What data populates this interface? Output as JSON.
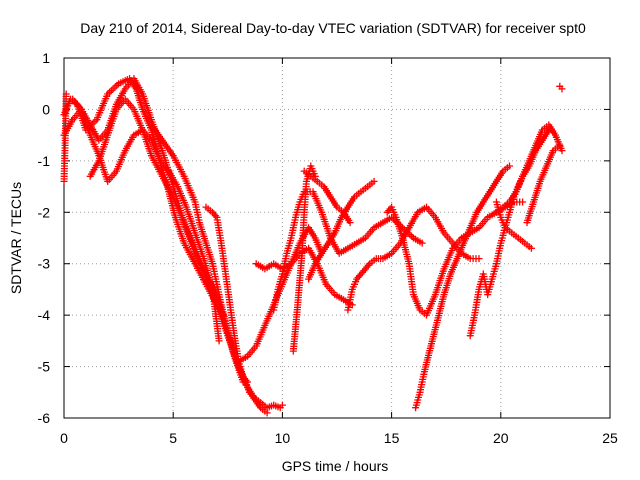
{
  "chart_data": {
    "type": "scatter",
    "title": "Day 210 of 2014, Sidereal Day-to-day VTEC variation (SDTVAR) for receiver spt0",
    "xlabel": "GPS time / hours",
    "ylabel": "SDTVAR / TECUs",
    "xlim": [
      0,
      25
    ],
    "ylim": [
      -6,
      1
    ],
    "xticks": [
      0,
      5,
      10,
      15,
      20,
      25
    ],
    "yticks": [
      -6,
      -5,
      -4,
      -3,
      -2,
      -1,
      0,
      1
    ],
    "xtick_labels": [
      "0",
      "5",
      "10",
      "15",
      "20",
      "25"
    ],
    "ytick_labels": [
      "-6",
      "-5",
      "-4",
      "-3",
      "-2",
      "-1",
      "0",
      "1"
    ],
    "grid": true,
    "marker": "+",
    "color": "#ff0000",
    "series": [
      {
        "name": "s1",
        "x": [
          0.0,
          0.3,
          0.6,
          1.0,
          1.5,
          2.0,
          2.5,
          3.0,
          3.3,
          3.6,
          4.0,
          4.4,
          4.8,
          5.1,
          5.5,
          6.0,
          6.5,
          7.0,
          7.3
        ],
        "y": [
          -0.1,
          0.2,
          0.1,
          -0.4,
          -0.2,
          0.3,
          0.5,
          0.6,
          0.4,
          0.0,
          -0.4,
          -1.0,
          -1.6,
          -2.1,
          -2.6,
          -3.0,
          -3.4,
          -3.8,
          -4.0
        ]
      },
      {
        "name": "s2",
        "x": [
          0.0,
          0.4,
          0.8,
          1.2,
          1.6,
          2.0,
          2.4,
          2.8,
          3.2,
          3.6,
          4.0,
          4.5,
          5.0,
          5.5,
          6.0,
          6.5,
          7.0,
          7.5,
          8.0,
          8.5,
          9.0,
          9.3
        ],
        "y": [
          -0.5,
          -0.2,
          0.0,
          -0.3,
          -0.6,
          -0.4,
          0.1,
          0.4,
          0.6,
          0.3,
          -0.2,
          -0.8,
          -1.5,
          -2.2,
          -2.8,
          -3.3,
          -3.8,
          -4.4,
          -5.0,
          -5.5,
          -5.8,
          -5.9
        ]
      },
      {
        "name": "s3",
        "x": [
          1.2,
          1.6,
          2.0,
          2.4,
          2.8,
          3.2,
          3.6,
          4.0,
          4.5,
          5.0,
          5.4,
          5.8,
          6.2,
          6.6,
          7.0,
          7.4,
          7.8,
          8.2
        ],
        "y": [
          -1.3,
          -1.0,
          -0.5,
          0.0,
          0.2,
          0.0,
          -0.4,
          -0.9,
          -1.3,
          -1.7,
          -2.1,
          -2.5,
          -2.9,
          -3.3,
          -3.6,
          -4.2,
          -4.8,
          -5.3
        ]
      },
      {
        "name": "s4",
        "x": [
          0.4,
          0.8,
          1.2,
          1.6,
          2.0,
          2.4,
          2.8,
          3.2,
          3.6,
          4.0,
          4.4,
          4.8,
          5.2,
          5.6,
          6.0,
          6.4,
          6.8,
          7.1
        ],
        "y": [
          0.2,
          0.0,
          -0.5,
          -0.9,
          -1.4,
          -1.2,
          -0.8,
          -0.5,
          -0.4,
          -0.6,
          -1.0,
          -1.2,
          -1.5,
          -1.9,
          -2.4,
          -2.9,
          -3.5,
          -4.5
        ]
      },
      {
        "name": "s5",
        "x": [
          4.0,
          4.5,
          5.0,
          5.5,
          6.0,
          6.2,
          6.5,
          6.8,
          7.0,
          7.2,
          7.5,
          7.8,
          8.2
        ],
        "y": [
          -0.3,
          -0.6,
          -0.9,
          -1.3,
          -1.8,
          -2.2,
          -2.6,
          -3.0,
          -3.4,
          -3.8,
          -4.3,
          -4.8,
          -5.2
        ]
      },
      {
        "name": "s6",
        "x": [
          6.5,
          6.8,
          7.0,
          7.2,
          7.4,
          7.6,
          7.8,
          8.0,
          8.2,
          8.4
        ],
        "y": [
          -1.9,
          -2.0,
          -2.1,
          -2.6,
          -3.2,
          -3.8,
          -4.4,
          -4.9,
          -5.2,
          -5.3
        ]
      },
      {
        "name": "s7",
        "x": [
          8.2,
          8.4,
          8.7,
          9.0,
          9.3,
          9.6,
          9.9,
          10.0
        ],
        "y": [
          -5.2,
          -5.4,
          -5.6,
          -5.7,
          -5.8,
          -5.75,
          -5.8,
          -5.75
        ]
      },
      {
        "name": "s8",
        "x": [
          8.0,
          8.4,
          8.8,
          9.2,
          9.6,
          10.0,
          10.4,
          10.8,
          11.2,
          11.6,
          12.0,
          12.4,
          12.8,
          13.2
        ],
        "y": [
          -4.9,
          -4.8,
          -4.6,
          -4.2,
          -3.8,
          -3.4,
          -3.0,
          -2.8,
          -2.7,
          -3.0,
          -3.4,
          -3.6,
          -3.7,
          -3.8
        ]
      },
      {
        "name": "s9",
        "x": [
          8.8,
          9.2,
          9.6,
          10.0,
          10.4,
          10.8,
          11.2,
          11.5,
          11.8
        ],
        "y": [
          -3.0,
          -3.1,
          -3.0,
          -3.1,
          -3.0,
          -2.6,
          -2.3,
          -2.5,
          -2.8
        ]
      },
      {
        "name": "s10",
        "x": [
          10.5,
          10.7,
          10.9,
          11.0,
          11.1,
          11.3,
          11.5
        ],
        "y": [
          -4.7,
          -3.8,
          -2.8,
          -2.0,
          -1.4,
          -1.1,
          -1.3
        ]
      },
      {
        "name": "s11",
        "x": [
          9.6,
          9.8,
          10.0,
          10.2,
          10.4,
          10.6,
          10.8,
          11.0,
          11.4,
          11.8,
          12.2,
          12.6,
          13.0,
          13.4,
          13.8,
          14.2,
          14.6,
          15.0,
          15.5,
          16.0,
          16.4
        ],
        "y": [
          -3.9,
          -3.5,
          -3.2,
          -2.8,
          -2.5,
          -2.1,
          -1.8,
          -1.6,
          -1.6,
          -2.0,
          -2.5,
          -2.8,
          -2.7,
          -2.6,
          -2.5,
          -2.3,
          -2.2,
          -2.1,
          -2.3,
          -2.5,
          -2.6
        ]
      },
      {
        "name": "s12",
        "x": [
          11.0,
          11.3,
          11.6,
          11.9,
          12.2,
          12.5,
          12.8,
          13.1
        ],
        "y": [
          -1.2,
          -1.3,
          -1.4,
          -1.5,
          -1.7,
          -1.9,
          -2.0,
          -2.2
        ]
      },
      {
        "name": "s13",
        "x": [
          11.2,
          11.5,
          11.8,
          12.1,
          12.4,
          12.7,
          13.0,
          13.3,
          13.6,
          13.9,
          14.2
        ],
        "y": [
          -3.3,
          -3.0,
          -2.8,
          -2.6,
          -2.4,
          -2.1,
          -1.9,
          -1.7,
          -1.6,
          -1.5,
          -1.4
        ]
      },
      {
        "name": "s14",
        "x": [
          13.0,
          13.2,
          13.4,
          13.6,
          13.8,
          14.0,
          14.3,
          14.6,
          15.0,
          15.4,
          15.8,
          16.2,
          16.6,
          17.0,
          17.4,
          17.8,
          18.2,
          18.6,
          19.0
        ],
        "y": [
          -3.9,
          -3.5,
          -3.3,
          -3.2,
          -3.1,
          -3.0,
          -2.9,
          -2.9,
          -2.8,
          -2.6,
          -2.3,
          -2.0,
          -1.9,
          -2.1,
          -2.4,
          -2.6,
          -2.8,
          -2.9,
          -2.9
        ]
      },
      {
        "name": "s15",
        "x": [
          14.8,
          15.0,
          15.2,
          15.5,
          15.8,
          16.0,
          16.3,
          16.6,
          17.0,
          17.4,
          17.8,
          18.2,
          18.6,
          19.0,
          19.4,
          19.8,
          20.2,
          20.6,
          21.0
        ],
        "y": [
          -2.0,
          -1.9,
          -2.1,
          -2.5,
          -3.0,
          -3.6,
          -3.9,
          -4.0,
          -3.6,
          -3.1,
          -2.7,
          -2.5,
          -2.4,
          -2.3,
          -2.1,
          -2.0,
          -1.9,
          -1.8,
          -1.8
        ]
      },
      {
        "name": "s16",
        "x": [
          16.1,
          16.3,
          16.5,
          16.8,
          17.1,
          17.4,
          17.7,
          18.0,
          18.3,
          18.6,
          18.9,
          19.2,
          19.5,
          19.8,
          20.1,
          20.4
        ],
        "y": [
          -5.8,
          -5.5,
          -5.1,
          -4.6,
          -4.1,
          -3.6,
          -3.2,
          -2.9,
          -2.6,
          -2.3,
          -2.0,
          -1.8,
          -1.6,
          -1.4,
          -1.2,
          -1.1
        ]
      },
      {
        "name": "s17",
        "x": [
          18.6,
          18.8,
          19.0,
          19.2,
          19.4,
          19.6,
          19.8,
          20.0,
          20.2,
          20.4,
          20.6,
          20.8,
          21.0,
          21.3,
          21.6,
          21.9,
          22.2
        ],
        "y": [
          -4.4,
          -4.0,
          -3.5,
          -3.2,
          -3.6,
          -3.3,
          -3.0,
          -2.6,
          -2.3,
          -2.0,
          -1.7,
          -1.5,
          -1.3,
          -1.1,
          -0.8,
          -0.6,
          -0.4
        ]
      },
      {
        "name": "s18",
        "x": [
          19.8,
          20.1,
          20.4,
          20.7,
          21.0,
          21.3,
          21.6,
          21.9,
          22.2,
          22.5,
          22.8
        ],
        "y": [
          -2.0,
          -1.9,
          -1.8,
          -1.6,
          -1.3,
          -1.0,
          -0.7,
          -0.4,
          -0.3,
          -0.5,
          -0.8
        ]
      },
      {
        "name": "s19",
        "x": [
          19.8,
          20.0,
          20.2,
          20.5,
          20.8,
          21.1,
          21.4
        ],
        "y": [
          -1.8,
          -2.1,
          -2.3,
          -2.4,
          -2.5,
          -2.6,
          -2.7
        ]
      },
      {
        "name": "s20",
        "x": [
          21.2,
          21.5,
          21.8,
          22.1,
          22.4,
          22.7
        ],
        "y": [
          -2.2,
          -1.8,
          -1.4,
          -1.1,
          -0.8,
          -0.7
        ]
      },
      {
        "name": "s21",
        "x": [
          0.0,
          0.05,
          0.1
        ],
        "y": [
          -1.4,
          -0.7,
          0.3
        ]
      },
      {
        "name": "s22",
        "x": [
          22.7,
          22.8
        ],
        "y": [
          0.45,
          0.4
        ]
      }
    ]
  }
}
